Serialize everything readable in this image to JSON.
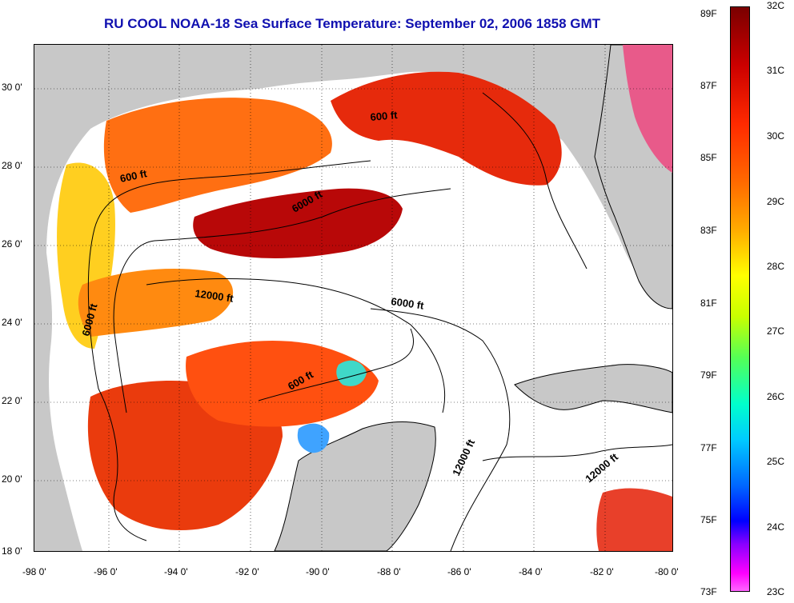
{
  "title": "RU COOL  NOAA-18  Sea Surface Temperature:  September 02, 2006 1858 GMT",
  "axes": {
    "lat_labels": [
      "30 0'",
      "28 0'",
      "26 0'",
      "24 0'",
      "22 0'",
      "20 0'",
      "18 0'"
    ],
    "lon_labels": [
      "-98 0'",
      "-96 0'",
      "-94 0'",
      "-92 0'",
      "-90 0'",
      "-88 0'",
      "-86 0'",
      "-84 0'",
      "-82 0'",
      "-80 0'"
    ]
  },
  "colorbar": {
    "fahrenheit": [
      "89F",
      "87F",
      "85F",
      "83F",
      "81F",
      "79F",
      "77F",
      "75F",
      "73F"
    ],
    "celsius": [
      "32C",
      "31C",
      "30C",
      "29C",
      "28C",
      "27C",
      "26C",
      "25C",
      "24C",
      "23C"
    ]
  },
  "contour_labels": [
    "600 ft",
    "6000 ft",
    "12000 ft",
    "6000 ft",
    "6000 ft",
    "600 ft",
    "600 ft",
    "12000 ft",
    "12000 ft"
  ],
  "colors": {
    "land": "#c8c8c8",
    "no_data": "#ffffff",
    "title": "#1010b0",
    "warm": "#e8200a",
    "hot": "#b00000",
    "orange": "#ff7a10",
    "yellow": "#ffd21a"
  }
}
